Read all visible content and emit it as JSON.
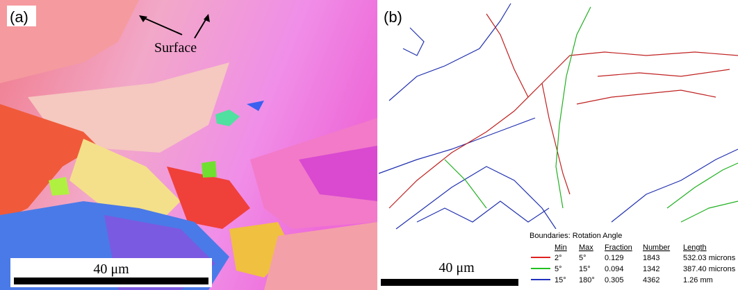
{
  "panel_a": {
    "label": "(a)",
    "annotation": "Surface",
    "scale_bar": "40 μm"
  },
  "panel_b": {
    "label": "(b)",
    "scale_bar": "40 μm",
    "legend": {
      "title": "Boundaries: Rotation Angle",
      "headers": [
        "Min",
        "Max",
        "Fraction",
        "Number",
        "Length"
      ],
      "rows": [
        [
          "2°",
          "5°",
          "0.129",
          "1843",
          "532.03 microns"
        ],
        [
          "5°",
          "15°",
          "0.094",
          "1342",
          "387.40 microns"
        ],
        [
          "15°",
          "180°",
          "0.305",
          "4362",
          "1.26 mm"
        ]
      ]
    }
  }
}
